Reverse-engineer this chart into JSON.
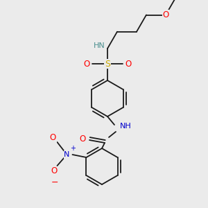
{
  "background_color": "#ebebeb",
  "bond_color": "#1a1a1a",
  "atom_colors": {
    "O": "#ff0000",
    "N": "#0000cc",
    "S": "#ccaa00",
    "NH": "#4a8f8f",
    "C": "#1a1a1a",
    "plus": "#0000cc",
    "minus": "#ff0000"
  },
  "figsize": [
    3.0,
    3.0
  ],
  "dpi": 100
}
